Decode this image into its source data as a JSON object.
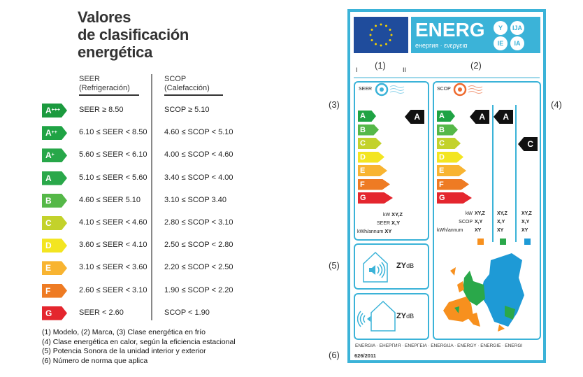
{
  "title": [
    "Valores",
    "de clasificación",
    "energética"
  ],
  "table": {
    "seer_header": [
      "SEER",
      "(Refrigeración)"
    ],
    "scop_header": [
      "SCOP",
      "(Calefacción)"
    ],
    "rows": [
      {
        "class": "A",
        "plus": "+++",
        "color": "#1b9a3e",
        "seer": "SEER ≥ 8.50",
        "scop": "SCOP ≥ 5.10"
      },
      {
        "class": "A",
        "plus": "++",
        "color": "#1fa344",
        "seer": "6.10 ≤ SEER < 8.50",
        "scop": "4.60 ≤ SCOP < 5.10"
      },
      {
        "class": "A",
        "plus": "+",
        "color": "#27a749",
        "seer": "5.60 ≤ SEER < 6.10",
        "scop": "4.00 ≤ SCOP < 4.60"
      },
      {
        "class": "A",
        "plus": "",
        "color": "#2aa84a",
        "seer": "5.10 ≤ SEER < 5.60",
        "scop": "3.40 ≤ SCOP < 4.00"
      },
      {
        "class": "B",
        "plus": "",
        "color": "#55b848",
        "seer": "4.60 ≤ SEER 5.10",
        "scop": "3.10 ≤ SCOP 3.40"
      },
      {
        "class": "C",
        "plus": "",
        "color": "#c3d22b",
        "seer": "4.10 ≤ SEER < 4.60",
        "scop": "2.80 ≤ SCOP < 3.10"
      },
      {
        "class": "D",
        "plus": "",
        "color": "#f3e521",
        "seer": "3.60 ≤ SEER < 4.10",
        "scop": "2.50 ≤ SCOP < 2.80"
      },
      {
        "class": "E",
        "plus": "",
        "color": "#f8b431",
        "seer": "3.10 ≤ SEER < 3.60",
        "scop": "2.20 ≤ SCOP < 2.50"
      },
      {
        "class": "F",
        "plus": "",
        "color": "#ee7b23",
        "seer": "2.60 ≤ SEER < 3.10",
        "scop": "1.90 ≤ SCOP < 2.20"
      },
      {
        "class": "G",
        "plus": "",
        "color": "#e4262e",
        "seer": "SEER < 2.60",
        "scop": "SCOP < 1.90"
      }
    ]
  },
  "footnotes": [
    "(1) Modelo,      (2) Marca,      (3) Clase energética en frío",
    "(4) Clase energética en calor, según la eficiencia estacional",
    "(5) Potencia Sonora de la unidad interior y exterior",
    "(6) Número de norma que aplica"
  ],
  "callouts": {
    "c1": "(1)",
    "c2": "(2)",
    "c3": "(3)",
    "c4": "(4)",
    "c5": "(5)",
    "c6": "(6)",
    "roman1": "I",
    "roman2": "II"
  },
  "energy_label": {
    "accent": "#3bb3d8",
    "energ": "ENERG",
    "energ_sub": "енергия · ενεργεια",
    "suffixes": [
      "Y",
      "IJA",
      "IE",
      "IA"
    ],
    "seer_label": "SEER",
    "scop_label": "SCOP",
    "scale": [
      {
        "letter": "A",
        "color": "#1fa344"
      },
      {
        "letter": "B",
        "color": "#55b848"
      },
      {
        "letter": "C",
        "color": "#c3d22b"
      },
      {
        "letter": "D",
        "color": "#f3e521"
      },
      {
        "letter": "E",
        "color": "#f8b431"
      },
      {
        "letter": "F",
        "color": "#ee7b23"
      },
      {
        "letter": "G",
        "color": "#e4262e"
      }
    ],
    "seer_rating": "A",
    "scop_ratings": [
      "A",
      "A",
      "C"
    ],
    "seer_values": {
      "kw_label": "kW",
      "kw": "XY,Z",
      "seer_label": "SEER",
      "seer": "X,Y",
      "annum_label": "kWh/annum",
      "annum": "XY"
    },
    "scop_values": {
      "kw_label": "kW",
      "scop_label": "SCOP",
      "annum_label": "kWh/annum",
      "columns": [
        {
          "kw": "XY,Z",
          "scop": "X,Y",
          "annum": "XY",
          "color": "#f7901e"
        },
        {
          "kw": "XY,Z",
          "scop": "X,Y",
          "annum": "XY",
          "color": "#2aa84a"
        },
        {
          "kw": "XY,Z",
          "scop": "X,Y",
          "annum": "XY",
          "color": "#1e9ad6"
        }
      ]
    },
    "sound_indoor": "ZY",
    "sound_outdoor": "ZY",
    "db_unit": "dB",
    "footer": "ENERGIA · ЕНЕРГИЯ · ΕΝΕΡΓΕΙΑ · ENERGIJA · ENERGY · ENERGIE · ENERGI",
    "regulation": "626/2011"
  }
}
